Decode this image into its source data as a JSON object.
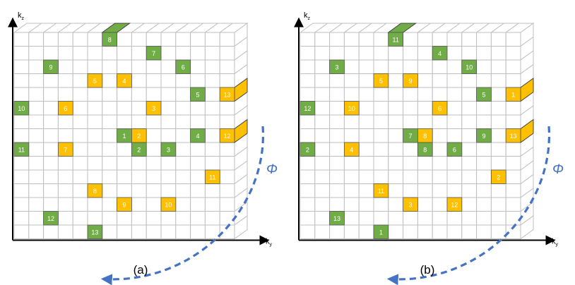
{
  "colors": {
    "green": "#70AD47",
    "orange": "#FFC000",
    "cell_text": "#ffffff",
    "grid": "#bfbfbf",
    "arrow": "#4472C4",
    "phi": "#4472C4",
    "axis": "#000000"
  },
  "panels": [
    {
      "caption": "(a)",
      "axis_vertical": "k",
      "axis_vertical_sub": "z",
      "axis_horizontal": "k",
      "axis_horizontal_sub": "y",
      "phi_label": "Φ",
      "cells": [
        {
          "row": 0,
          "col": 6,
          "label": "8",
          "color": "green",
          "depth": true
        },
        {
          "row": 1,
          "col": 9,
          "label": "7",
          "color": "green"
        },
        {
          "row": 2,
          "col": 2,
          "label": "9",
          "color": "green"
        },
        {
          "row": 2,
          "col": 11,
          "label": "6",
          "color": "green"
        },
        {
          "row": 3,
          "col": 5,
          "label": "5",
          "color": "orange"
        },
        {
          "row": 3,
          "col": 7,
          "label": "4",
          "color": "orange"
        },
        {
          "row": 4,
          "col": 12,
          "label": "5",
          "color": "green"
        },
        {
          "row": 4,
          "col": 14,
          "label": "13",
          "color": "orange",
          "depth": true
        },
        {
          "row": 5,
          "col": 0,
          "label": "10",
          "color": "green"
        },
        {
          "row": 5,
          "col": 3,
          "label": "6",
          "color": "orange"
        },
        {
          "row": 5,
          "col": 9,
          "label": "3",
          "color": "orange"
        },
        {
          "row": 7,
          "col": 7,
          "label": "1",
          "color": "green"
        },
        {
          "row": 7,
          "col": 8,
          "label": "2",
          "color": "orange"
        },
        {
          "row": 7,
          "col": 12,
          "label": "4",
          "color": "green"
        },
        {
          "row": 7,
          "col": 14,
          "label": "12",
          "color": "orange",
          "depth": true
        },
        {
          "row": 8,
          "col": 0,
          "label": "11",
          "color": "green"
        },
        {
          "row": 8,
          "col": 3,
          "label": "7",
          "color": "orange"
        },
        {
          "row": 8,
          "col": 8,
          "label": "2",
          "color": "green"
        },
        {
          "row": 8,
          "col": 10,
          "label": "3",
          "color": "green"
        },
        {
          "row": 10,
          "col": 13,
          "label": "11",
          "color": "orange"
        },
        {
          "row": 11,
          "col": 5,
          "label": "8",
          "color": "orange"
        },
        {
          "row": 12,
          "col": 7,
          "label": "9",
          "color": "orange"
        },
        {
          "row": 12,
          "col": 10,
          "label": "10",
          "color": "orange"
        },
        {
          "row": 13,
          "col": 2,
          "label": "12",
          "color": "green"
        },
        {
          "row": 14,
          "col": 5,
          "label": "13",
          "color": "green"
        }
      ]
    },
    {
      "caption": "(b)",
      "axis_vertical": "k",
      "axis_vertical_sub": "z",
      "axis_horizontal": "k",
      "axis_horizontal_sub": "y",
      "phi_label": "Φ",
      "cells": [
        {
          "row": 0,
          "col": 6,
          "label": "11",
          "color": "green",
          "depth": true
        },
        {
          "row": 1,
          "col": 9,
          "label": "4",
          "color": "green"
        },
        {
          "row": 2,
          "col": 2,
          "label": "3",
          "color": "green"
        },
        {
          "row": 2,
          "col": 11,
          "label": "10",
          "color": "green"
        },
        {
          "row": 3,
          "col": 5,
          "label": "5",
          "color": "orange"
        },
        {
          "row": 3,
          "col": 7,
          "label": "9",
          "color": "orange"
        },
        {
          "row": 4,
          "col": 12,
          "label": "5",
          "color": "green"
        },
        {
          "row": 4,
          "col": 14,
          "label": "1",
          "color": "orange",
          "depth": true
        },
        {
          "row": 5,
          "col": 0,
          "label": "12",
          "color": "green"
        },
        {
          "row": 5,
          "col": 3,
          "label": "10",
          "color": "orange"
        },
        {
          "row": 5,
          "col": 9,
          "label": "6",
          "color": "orange"
        },
        {
          "row": 7,
          "col": 7,
          "label": "7",
          "color": "green"
        },
        {
          "row": 7,
          "col": 8,
          "label": "8",
          "color": "orange"
        },
        {
          "row": 7,
          "col": 12,
          "label": "9",
          "color": "green"
        },
        {
          "row": 7,
          "col": 14,
          "label": "13",
          "color": "orange",
          "depth": true
        },
        {
          "row": 8,
          "col": 0,
          "label": "2",
          "color": "green"
        },
        {
          "row": 8,
          "col": 3,
          "label": "4",
          "color": "orange"
        },
        {
          "row": 8,
          "col": 8,
          "label": "8",
          "color": "green"
        },
        {
          "row": 8,
          "col": 10,
          "label": "6",
          "color": "green"
        },
        {
          "row": 10,
          "col": 13,
          "label": "2",
          "color": "orange"
        },
        {
          "row": 11,
          "col": 5,
          "label": "11",
          "color": "orange"
        },
        {
          "row": 12,
          "col": 7,
          "label": "3",
          "color": "orange"
        },
        {
          "row": 12,
          "col": 10,
          "label": "12",
          "color": "orange"
        },
        {
          "row": 13,
          "col": 2,
          "label": "13",
          "color": "green"
        },
        {
          "row": 14,
          "col": 5,
          "label": "1",
          "color": "green"
        }
      ]
    }
  ]
}
